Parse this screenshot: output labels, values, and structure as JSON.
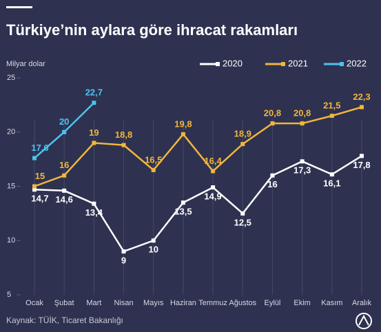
{
  "chart_data": {
    "type": "line",
    "title": "Türkiye’nin aylara göre ihracat rakamları",
    "y_label": "Milyar dolar",
    "source": "Kaynak: TÜİK, Ticaret Bakanlığı",
    "categories": [
      "Ocak",
      "Şubat",
      "Mart",
      "Nisan",
      "Mayıs",
      "Haziran",
      "Temmuz",
      "Ağustos",
      "Eylül",
      "Ekim",
      "Kasım",
      "Aralık"
    ],
    "series": [
      {
        "name": "2020",
        "color": "#ffffff",
        "label_side": "below",
        "values": [
          14.7,
          14.6,
          13.4,
          9,
          10,
          13.5,
          14.9,
          12.5,
          16,
          17.3,
          16.1,
          17.8
        ],
        "value_labels": [
          "14,7",
          "14,6",
          "13,4",
          "9",
          "10",
          "13,5",
          "14,9",
          "12,5",
          "16",
          "17,3",
          "16,1",
          "17,8"
        ]
      },
      {
        "name": "2021",
        "color": "#f2b63c",
        "label_side": "above",
        "values": [
          15,
          16,
          19,
          18.8,
          16.5,
          19.8,
          16.4,
          18.9,
          20.8,
          20.8,
          21.5,
          22.3
        ],
        "value_labels": [
          "15",
          "16",
          "19",
          "18,8",
          "16,5",
          "19,8",
          "16,4",
          "18,9",
          "20,8",
          "20,8",
          "21,5",
          "22,3"
        ]
      },
      {
        "name": "2022",
        "color": "#4cc4f0",
        "label_side": "above",
        "values": [
          17.6,
          20,
          22.7,
          null,
          null,
          null,
          null,
          null,
          null,
          null,
          null,
          null
        ],
        "value_labels": [
          "17,6",
          "20",
          "22,7",
          null,
          null,
          null,
          null,
          null,
          null,
          null,
          null,
          null
        ]
      }
    ],
    "ylim": [
      5,
      25
    ],
    "yticks": [
      5,
      10,
      15,
      20,
      25
    ],
    "legend": "top-right"
  }
}
